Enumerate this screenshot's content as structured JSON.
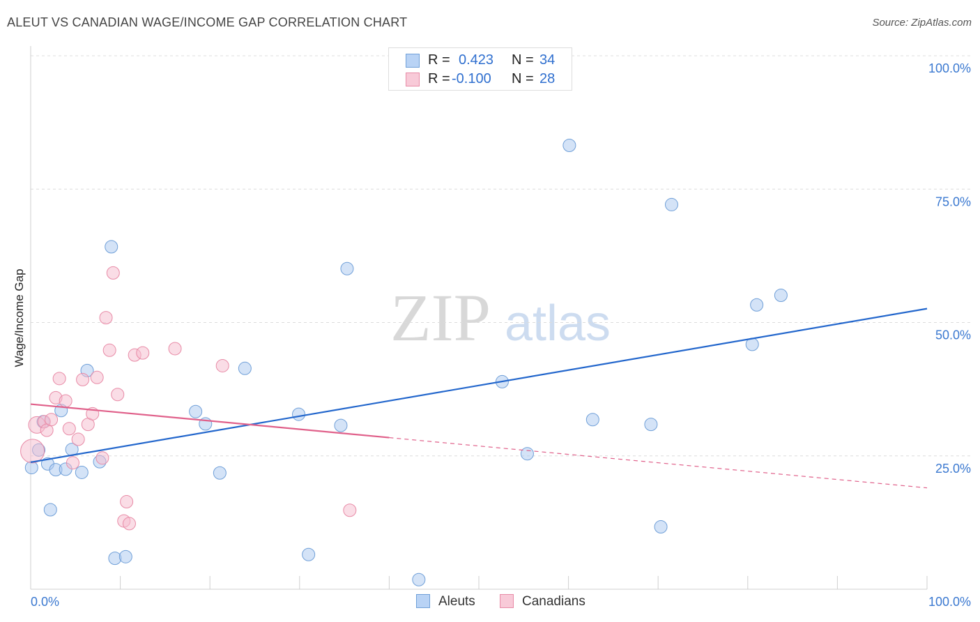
{
  "title": "ALEUT VS CANADIAN WAGE/INCOME GAP CORRELATION CHART",
  "source": "Source: ZipAtlas.com",
  "watermark": {
    "zip": "ZIP",
    "atlas": "atlas"
  },
  "legend": {
    "rows": [
      {
        "r_label": "R =",
        "r_value": "0.423",
        "n_label": "N =",
        "n_value": "34"
      },
      {
        "r_label": "R =",
        "r_value": "-0.100",
        "n_label": "N =",
        "n_value": "28"
      }
    ]
  },
  "bottom_legend": {
    "aleuts": "Aleuts",
    "canadians": "Canadians"
  },
  "chart_data": {
    "type": "scatter",
    "title": "ALEUT VS CANADIAN WAGE/INCOME GAP CORRELATION CHART",
    "xlabel": "",
    "ylabel": "Wage/Income Gap",
    "xlim": [
      0,
      100
    ],
    "ylim": [
      0,
      100
    ],
    "x_tick_labels": [
      "0.0%",
      "100.0%"
    ],
    "y_ticks": [
      25,
      50,
      75,
      100
    ],
    "y_tick_labels": [
      "25.0%",
      "50.0%",
      "75.0%",
      "100.0%"
    ],
    "grid": true,
    "legend_position": "top-center",
    "series": [
      {
        "name": "Aleuts",
        "color": "#a9c8f0",
        "stroke": "#6f9fd8",
        "trend_color": "#2266cc",
        "r": 0.423,
        "n": 34,
        "trend": {
          "x": [
            0,
            100
          ],
          "y": [
            23.8,
            52.6
          ],
          "solid_to": 100
        },
        "points": [
          {
            "x": 0.1,
            "y": 22.8,
            "s": 9
          },
          {
            "x": 0.9,
            "y": 26.1,
            "s": 9
          },
          {
            "x": 1.4,
            "y": 31.4,
            "s": 9
          },
          {
            "x": 1.9,
            "y": 23.5,
            "s": 9
          },
          {
            "x": 2.2,
            "y": 14.9,
            "s": 9
          },
          {
            "x": 2.8,
            "y": 22.4,
            "s": 9
          },
          {
            "x": 3.4,
            "y": 33.5,
            "s": 9
          },
          {
            "x": 3.9,
            "y": 22.5,
            "s": 9
          },
          {
            "x": 4.6,
            "y": 26.2,
            "s": 9
          },
          {
            "x": 5.7,
            "y": 21.9,
            "s": 9
          },
          {
            "x": 6.3,
            "y": 41.0,
            "s": 9
          },
          {
            "x": 7.7,
            "y": 23.9,
            "s": 9
          },
          {
            "x": 9.0,
            "y": 64.2,
            "s": 9
          },
          {
            "x": 9.4,
            "y": 5.8,
            "s": 9
          },
          {
            "x": 10.6,
            "y": 6.1,
            "s": 9
          },
          {
            "x": 18.4,
            "y": 33.3,
            "s": 9
          },
          {
            "x": 19.5,
            "y": 31.0,
            "s": 9
          },
          {
            "x": 21.1,
            "y": 21.8,
            "s": 9
          },
          {
            "x": 23.9,
            "y": 41.4,
            "s": 9
          },
          {
            "x": 29.9,
            "y": 32.8,
            "s": 9
          },
          {
            "x": 31.0,
            "y": 6.5,
            "s": 9
          },
          {
            "x": 34.6,
            "y": 30.7,
            "s": 9
          },
          {
            "x": 35.3,
            "y": 60.1,
            "s": 9
          },
          {
            "x": 43.3,
            "y": 1.8,
            "s": 9
          },
          {
            "x": 52.6,
            "y": 38.9,
            "s": 9
          },
          {
            "x": 55.4,
            "y": 25.4,
            "s": 9
          },
          {
            "x": 60.1,
            "y": 83.2,
            "s": 9
          },
          {
            "x": 62.7,
            "y": 31.8,
            "s": 9
          },
          {
            "x": 69.2,
            "y": 30.9,
            "s": 9
          },
          {
            "x": 70.3,
            "y": 11.7,
            "s": 9
          },
          {
            "x": 71.5,
            "y": 72.1,
            "s": 9
          },
          {
            "x": 80.5,
            "y": 45.9,
            "s": 9
          },
          {
            "x": 81.0,
            "y": 53.3,
            "s": 9
          },
          {
            "x": 83.7,
            "y": 55.1,
            "s": 9
          }
        ]
      },
      {
        "name": "Canadians",
        "color": "#f5bccd",
        "stroke": "#e88aa6",
        "trend_color": "#e0608a",
        "r": -0.1,
        "n": 28,
        "trend": {
          "x": [
            0,
            100
          ],
          "y": [
            34.7,
            19.0
          ],
          "solid_to": 40
        },
        "points": [
          {
            "x": 0.2,
            "y": 25.9,
            "s": 17
          },
          {
            "x": 0.7,
            "y": 30.8,
            "s": 12
          },
          {
            "x": 1.5,
            "y": 31.4,
            "s": 9
          },
          {
            "x": 1.8,
            "y": 29.8,
            "s": 9
          },
          {
            "x": 2.3,
            "y": 31.8,
            "s": 9
          },
          {
            "x": 2.8,
            "y": 35.9,
            "s": 9
          },
          {
            "x": 3.2,
            "y": 39.5,
            "s": 9
          },
          {
            "x": 3.9,
            "y": 35.3,
            "s": 9
          },
          {
            "x": 4.3,
            "y": 30.1,
            "s": 9
          },
          {
            "x": 4.7,
            "y": 23.7,
            "s": 9
          },
          {
            "x": 5.3,
            "y": 28.1,
            "s": 9
          },
          {
            "x": 5.8,
            "y": 39.3,
            "s": 9
          },
          {
            "x": 6.4,
            "y": 30.9,
            "s": 9
          },
          {
            "x": 6.9,
            "y": 32.9,
            "s": 9
          },
          {
            "x": 7.4,
            "y": 39.7,
            "s": 9
          },
          {
            "x": 8.0,
            "y": 24.6,
            "s": 9
          },
          {
            "x": 8.4,
            "y": 50.9,
            "s": 9
          },
          {
            "x": 8.8,
            "y": 44.8,
            "s": 9
          },
          {
            "x": 9.2,
            "y": 59.3,
            "s": 9
          },
          {
            "x": 9.7,
            "y": 36.5,
            "s": 9
          },
          {
            "x": 10.4,
            "y": 12.8,
            "s": 9
          },
          {
            "x": 10.7,
            "y": 16.4,
            "s": 9
          },
          {
            "x": 11.0,
            "y": 12.3,
            "s": 9
          },
          {
            "x": 11.6,
            "y": 43.9,
            "s": 9
          },
          {
            "x": 12.5,
            "y": 44.3,
            "s": 9
          },
          {
            "x": 16.1,
            "y": 45.1,
            "s": 9
          },
          {
            "x": 21.4,
            "y": 41.9,
            "s": 9
          },
          {
            "x": 35.6,
            "y": 14.8,
            "s": 9
          }
        ]
      }
    ]
  }
}
